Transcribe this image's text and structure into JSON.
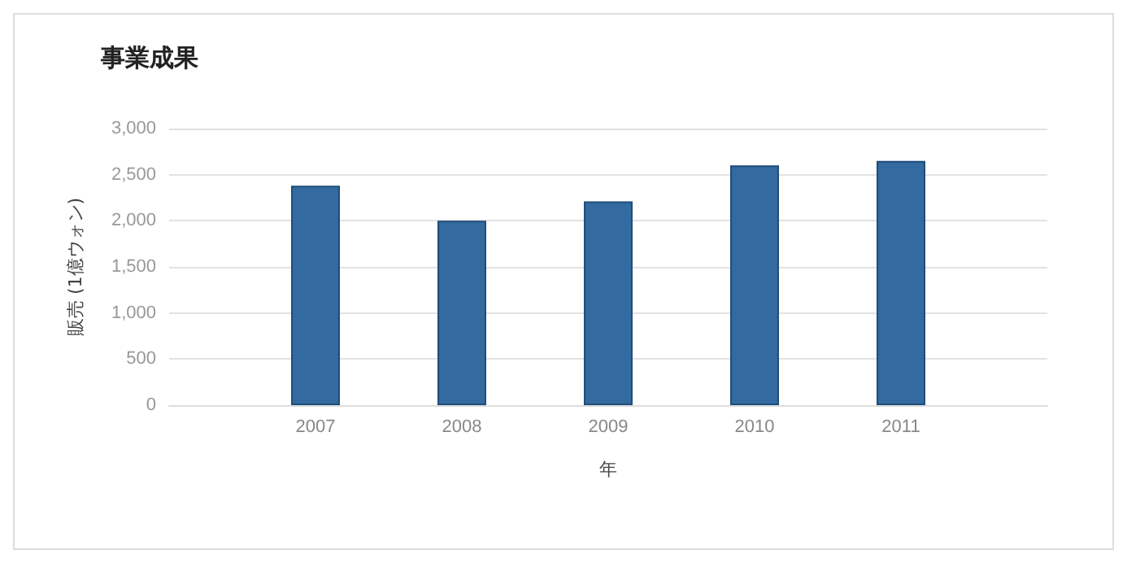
{
  "chart_data": {
    "type": "bar",
    "title": "事業成果",
    "xlabel": "年",
    "ylabel": "販売 (1億ウォン)",
    "categories": [
      null,
      "2007",
      "2008",
      "2009",
      "2010",
      "2011",
      null
    ],
    "values": [
      null,
      2380,
      2000,
      2210,
      2600,
      2650,
      null
    ],
    "color": "#336a9f",
    "ylim": [
      0,
      3000
    ],
    "yticks": [
      {
        "value": 0,
        "label": "0"
      },
      {
        "value": 500,
        "label": "500"
      },
      {
        "value": 1000,
        "label": "1,000"
      },
      {
        "value": 1500,
        "label": "1,500"
      },
      {
        "value": 2000,
        "label": "2,000"
      },
      {
        "value": 2500,
        "label": "2,500"
      },
      {
        "value": 3000,
        "label": "3,000"
      }
    ],
    "grid": "y"
  }
}
